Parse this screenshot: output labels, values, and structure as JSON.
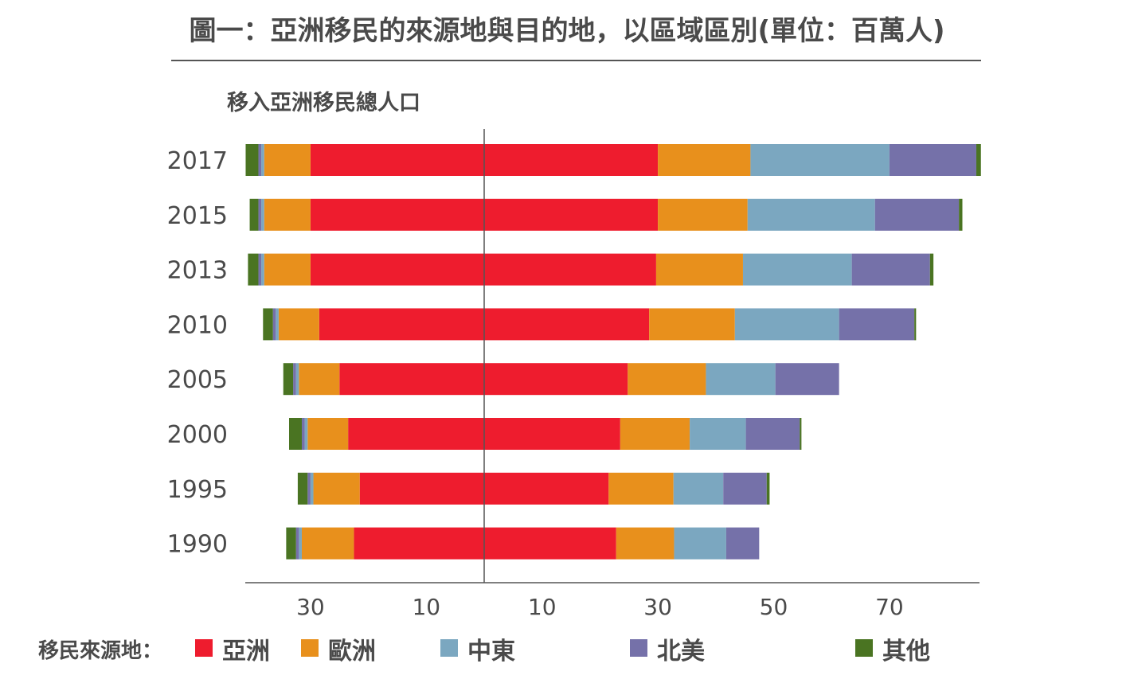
{
  "chart_data": {
    "type": "bar",
    "orientation": "horizontal-diverging",
    "title": "圖一：亞洲移民的來源地與目的地，以區域區別(單位：百萬人)",
    "subtitle": "移入亞洲移民總人口",
    "categories": [
      "2017",
      "2015",
      "2013",
      "2010",
      "2005",
      "2000",
      "1995",
      "1990"
    ],
    "x_tick_labels": [
      "30",
      "10",
      "10",
      "30",
      "50",
      "70"
    ],
    "x_ticks": [
      -30,
      -10,
      10,
      30,
      50,
      70
    ],
    "xlim": [
      -41,
      85
    ],
    "legend_title": "移民來源地：",
    "legend_position": "bottom",
    "colors": {
      "亞洲": "#ee1c2e",
      "歐洲": "#e8901c",
      "中東": "#7ba7c0",
      "北美": "#7571a9",
      "其他": "#4a7422"
    },
    "left_series": [
      {
        "name": "亞洲",
        "values": [
          30,
          30,
          30,
          28.5,
          25,
          23.5,
          21.5,
          22.5
        ]
      },
      {
        "name": "歐洲",
        "values": [
          8,
          8,
          8,
          7,
          7,
          7,
          8,
          9
        ]
      },
      {
        "name": "中東",
        "values": [
          0.5,
          0.5,
          0.5,
          0.5,
          0.5,
          0.5,
          0.5,
          0.5
        ]
      },
      {
        "name": "北美",
        "values": [
          0.5,
          0.5,
          0.5,
          0.5,
          0.5,
          0.5,
          0.5,
          0.5
        ]
      },
      {
        "name": "其他",
        "values": [
          2.2,
          1.5,
          1.8,
          1.7,
          1.7,
          2.2,
          1.7,
          1.7
        ]
      }
    ],
    "right_series": [
      {
        "name": "亞洲",
        "values": [
          30,
          30,
          29.7,
          28.5,
          24.8,
          23.5,
          21.5,
          22.8
        ]
      },
      {
        "name": "歐洲",
        "values": [
          16,
          15.5,
          15,
          14.8,
          13.5,
          12,
          11.2,
          10
        ]
      },
      {
        "name": "中東",
        "values": [
          24,
          22,
          18.8,
          18,
          12,
          9.7,
          8.6,
          9
        ]
      },
      {
        "name": "北美",
        "values": [
          15,
          14.5,
          13.5,
          13,
          11,
          9.3,
          7.5,
          5.7
        ]
      },
      {
        "name": "其他",
        "values": [
          0.8,
          0.6,
          0.6,
          0.3,
          0,
          0.3,
          0.5,
          0
        ]
      }
    ]
  }
}
